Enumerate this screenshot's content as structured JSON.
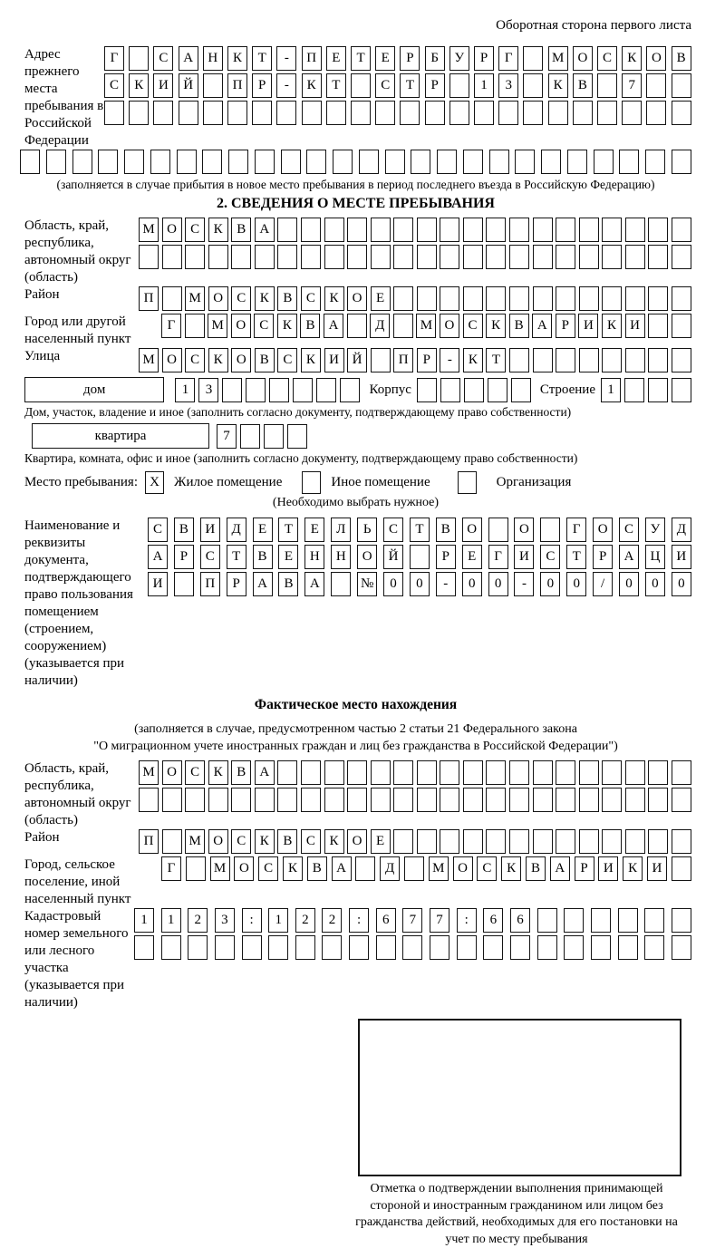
{
  "header": {
    "back_side_note": "Оборотная сторона первого листа"
  },
  "prev_address": {
    "label": "Адрес прежнего места пребывания в Российской Федерации",
    "rows": [
      [
        "Г",
        "",
        "С",
        "А",
        "Н",
        "К",
        "Т",
        "-",
        "П",
        "Е",
        "Т",
        "Е",
        "Р",
        "Б",
        "У",
        "Р",
        "Г",
        "",
        "М",
        "О",
        "С",
        "К",
        "О",
        "В"
      ],
      [
        "С",
        "К",
        "И",
        "Й",
        "",
        "П",
        "Р",
        "-",
        "К",
        "Т",
        "",
        "С",
        "Т",
        "Р",
        "",
        "1",
        "3",
        "",
        "К",
        "В",
        "",
        "7",
        "",
        ""
      ],
      [
        "",
        "",
        "",
        "",
        "",
        "",
        "",
        "",
        "",
        "",
        "",
        "",
        "",
        "",
        "",
        "",
        "",
        "",
        "",
        "",
        "",
        "",
        "",
        ""
      ]
    ],
    "overflow_row": [
      "",
      "",
      "",
      "",
      "",
      "",
      "",
      "",
      "",
      "",
      "",
      "",
      "",
      "",
      "",
      "",
      "",
      "",
      "",
      "",
      "",
      "",
      "",
      "",
      "",
      ""
    ],
    "caption": "(заполняется в случае прибытия в новое место пребывания в период последнего въезда в Российскую Федерацию)"
  },
  "section2": {
    "title": "2. СВЕДЕНИЯ О МЕСТЕ ПРЕБЫВАНИЯ",
    "region": {
      "label": "Область, край, республика, автономный округ (область)",
      "rows": [
        [
          "М",
          "О",
          "С",
          "К",
          "В",
          "А",
          "",
          "",
          "",
          "",
          "",
          "",
          "",
          "",
          "",
          "",
          "",
          "",
          "",
          "",
          "",
          "",
          "",
          ""
        ],
        [
          "",
          "",
          "",
          "",
          "",
          "",
          "",
          "",
          "",
          "",
          "",
          "",
          "",
          "",
          "",
          "",
          "",
          "",
          "",
          "",
          "",
          "",
          "",
          ""
        ]
      ]
    },
    "district": {
      "label": "Район",
      "row": [
        "П",
        "",
        "М",
        "О",
        "С",
        "К",
        "В",
        "С",
        "К",
        "О",
        "Е",
        "",
        "",
        "",
        "",
        "",
        "",
        "",
        "",
        "",
        "",
        "",
        "",
        ""
      ]
    },
    "city": {
      "label": "Город или другой населенный пункт",
      "row": [
        "Г",
        "",
        "М",
        "О",
        "С",
        "К",
        "В",
        "А",
        "",
        "Д",
        "",
        "М",
        "О",
        "С",
        "К",
        "В",
        "А",
        "Р",
        "И",
        "К",
        "И",
        "",
        ""
      ]
    },
    "street": {
      "label": "Улица",
      "row": [
        "М",
        "О",
        "С",
        "К",
        "О",
        "В",
        "С",
        "К",
        "И",
        "Й",
        "",
        "П",
        "Р",
        "-",
        "К",
        "Т",
        "",
        "",
        "",
        "",
        "",
        "",
        "",
        ""
      ]
    },
    "house": {
      "box_label": "дом",
      "number_cells": [
        "1",
        "3",
        "",
        "",
        "",
        "",
        "",
        ""
      ],
      "korpus_label": "Корпус",
      "korpus_cells": [
        "",
        "",
        "",
        "",
        ""
      ],
      "stroenie_label": "Строение",
      "stroenie_cells": [
        "1",
        "",
        "",
        ""
      ]
    },
    "house_caption": "Дом, участок, владение и иное (заполнить согласно документу, подтверждающему право собственности)",
    "apartment": {
      "box_label": "квартира",
      "cells": [
        "7",
        "",
        "",
        ""
      ]
    },
    "apartment_caption": "Квартира, комната, офис и иное (заполнить согласно документу, подтверждающему право собственности)",
    "stay_type": {
      "label": "Место пребывания:",
      "options": [
        {
          "label": "Жилое помещение",
          "mark": "X"
        },
        {
          "label": "Иное помещение",
          "mark": ""
        },
        {
          "label": "Организация",
          "mark": ""
        }
      ],
      "choose_note": "(Необходимо выбрать нужное)"
    },
    "document": {
      "label": "Наименование и реквизиты документа, подтверждающего право пользования помещением (строением, сооружением) (указывается при наличии)",
      "rows": [
        [
          "С",
          "В",
          "И",
          "Д",
          "Е",
          "Т",
          "Е",
          "Л",
          "Ь",
          "С",
          "Т",
          "В",
          "О",
          "",
          "О",
          "",
          "Г",
          "О",
          "С",
          "У",
          "Д"
        ],
        [
          "А",
          "Р",
          "С",
          "Т",
          "В",
          "Е",
          "Н",
          "Н",
          "О",
          "Й",
          "",
          "Р",
          "Е",
          "Г",
          "И",
          "С",
          "Т",
          "Р",
          "А",
          "Ц",
          "И"
        ],
        [
          "И",
          "",
          "П",
          "Р",
          "А",
          "В",
          "А",
          "",
          "№",
          "0",
          "0",
          "-",
          "0",
          "0",
          "-",
          "0",
          "0",
          "/",
          "0",
          "0",
          "0"
        ]
      ]
    }
  },
  "actual_location": {
    "title": "Фактическое место нахождения",
    "note_line1": "(заполняется в случае, предусмотренном частью 2 статьи 21 Федерального закона",
    "note_line2": "\"О миграционном учете иностранных граждан и лиц без гражданства в Российской Федерации\")",
    "region": {
      "label": "Область, край, республика, автономный округ (область)",
      "rows": [
        [
          "М",
          "О",
          "С",
          "К",
          "В",
          "А",
          "",
          "",
          "",
          "",
          "",
          "",
          "",
          "",
          "",
          "",
          "",
          "",
          "",
          "",
          "",
          "",
          "",
          ""
        ],
        [
          "",
          "",
          "",
          "",
          "",
          "",
          "",
          "",
          "",
          "",
          "",
          "",
          "",
          "",
          "",
          "",
          "",
          "",
          "",
          "",
          "",
          "",
          "",
          ""
        ]
      ]
    },
    "district": {
      "label": "Район",
      "row": [
        "П",
        "",
        "М",
        "О",
        "С",
        "К",
        "В",
        "С",
        "К",
        "О",
        "Е",
        "",
        "",
        "",
        "",
        "",
        "",
        "",
        "",
        "",
        "",
        "",
        "",
        ""
      ]
    },
    "city": {
      "label": "Город, сельское поселение, иной населенный пункт",
      "row": [
        "Г",
        "",
        "М",
        "О",
        "С",
        "К",
        "В",
        "А",
        "",
        "Д",
        "",
        "М",
        "О",
        "С",
        "К",
        "В",
        "А",
        "Р",
        "И",
        "К",
        "И",
        ""
      ]
    },
    "cadastre": {
      "label": "Кадастровый номер земельного или лесного участка (указывается при наличии)",
      "rows": [
        [
          "1",
          "1",
          "2",
          "3",
          ":",
          "1",
          "2",
          "2",
          ":",
          "6",
          "7",
          "7",
          ":",
          "6",
          "6",
          "",
          "",
          "",
          "",
          "",
          ""
        ],
        [
          "",
          "",
          "",
          "",
          "",
          "",
          "",
          "",
          "",
          "",
          "",
          "",
          "",
          "",
          "",
          "",
          "",
          "",
          "",
          "",
          ""
        ]
      ]
    },
    "stamp_caption": "Отметка о подтверждении выполнения принимающей стороной и иностранным гражданином или лицом без гражданства действий, необходимых для его постановки на учет по месту пребывания"
  }
}
